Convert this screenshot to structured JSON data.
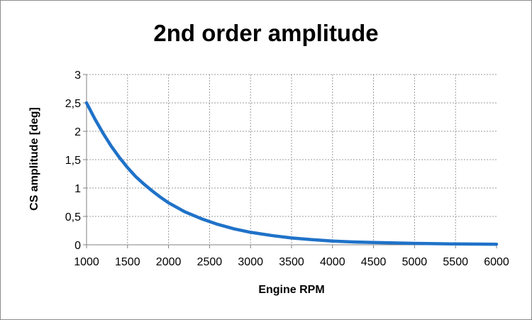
{
  "chart_data": {
    "type": "line",
    "title": "2nd order amplitude",
    "xlabel": "Engine RPM",
    "ylabel": "CS amplitude [deg]",
    "xlim": [
      1000,
      6000
    ],
    "ylim": [
      0,
      3
    ],
    "x_ticks": [
      "1000",
      "1500",
      "2000",
      "2500",
      "3000",
      "3500",
      "4000",
      "4500",
      "5000",
      "5500",
      "6000"
    ],
    "y_ticks": [
      "0",
      "0,5",
      "1",
      "1,5",
      "2",
      "2,5",
      "3"
    ],
    "grid": true,
    "legend": "none",
    "series": [
      {
        "color": "#1f72c8",
        "x": [
          1000,
          1100,
          1200,
          1300,
          1400,
          1500,
          1600,
          1700,
          1800,
          1900,
          2000,
          2200,
          2400,
          2600,
          2800,
          3000,
          3250,
          3500,
          3750,
          4000,
          4250,
          4500,
          5000,
          5500,
          6000
        ],
        "y": [
          2.5,
          2.22,
          1.97,
          1.74,
          1.54,
          1.36,
          1.2,
          1.07,
          0.95,
          0.84,
          0.74,
          0.58,
          0.46,
          0.36,
          0.28,
          0.22,
          0.165,
          0.12,
          0.09,
          0.065,
          0.05,
          0.04,
          0.025,
          0.015,
          0.01
        ]
      }
    ]
  }
}
